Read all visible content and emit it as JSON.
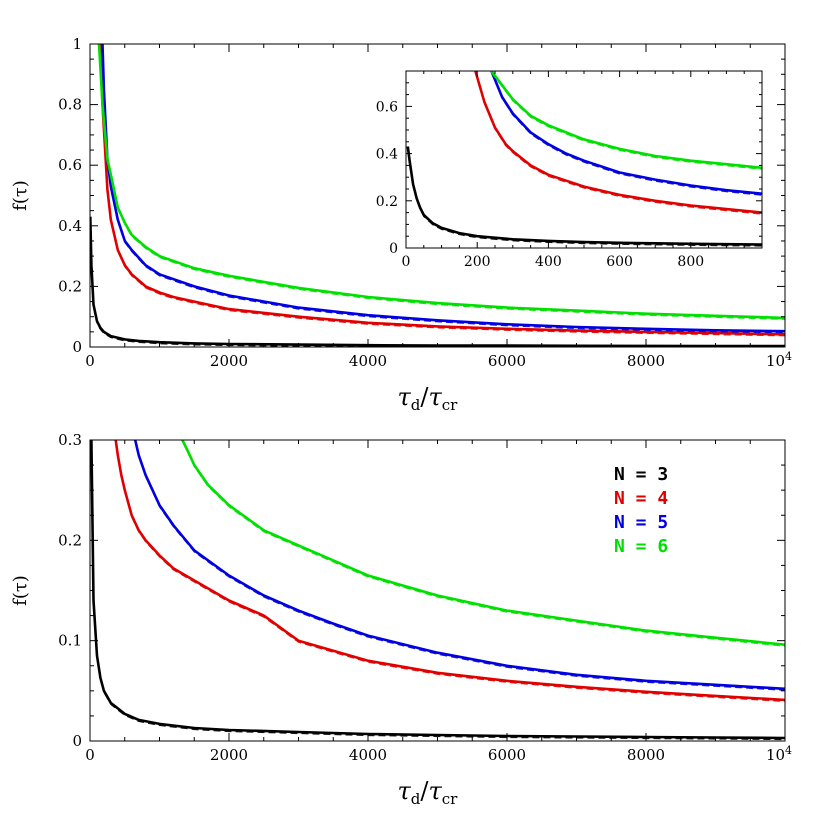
{
  "chart_data": [
    {
      "id": "top",
      "type": "line",
      "xlabel_main": "τ",
      "xlabel_sub_num": "d",
      "xlabel_den_main": "τ",
      "xlabel_den_sub": "cr",
      "ylabel": "f(τ)",
      "xlim": [
        0,
        10000
      ],
      "ylim": [
        0,
        1
      ],
      "xticks": [
        0,
        2000,
        4000,
        6000,
        8000
      ],
      "xtick_labels": [
        "0",
        "2000",
        "4000",
        "6000",
        "8000"
      ],
      "xtick_last": {
        "value": 10000,
        "base": "10",
        "exp": "4"
      },
      "yticks": [
        0,
        0.2,
        0.4,
        0.6,
        0.8,
        1
      ],
      "ytick_labels": [
        "0",
        "0.2",
        "0.4",
        "0.6",
        "0.8",
        "1"
      ],
      "series": [
        {
          "color": "#000000",
          "x": [
            5,
            20,
            50,
            100,
            150,
            200,
            300,
            500,
            700,
            1000,
            1500,
            2000,
            3000,
            4000,
            5000,
            6000,
            7000,
            8000,
            9000,
            10000
          ],
          "y": [
            0.43,
            0.27,
            0.14,
            0.085,
            0.063,
            0.05,
            0.036,
            0.025,
            0.02,
            0.016,
            0.012,
            0.01,
            0.008,
            0.006,
            0.005,
            0.0045,
            0.004,
            0.0035,
            0.0032,
            0.003
          ]
        },
        {
          "color": "#e00000",
          "x": [
            150,
            180,
            200,
            250,
            300,
            400,
            500,
            600,
            700,
            800,
            1000,
            1200,
            1500,
            2000,
            3000,
            4000,
            5000,
            6000,
            7000,
            8000,
            9000,
            10000
          ],
          "y": [
            1.0,
            0.8,
            0.72,
            0.52,
            0.42,
            0.32,
            0.27,
            0.24,
            0.22,
            0.2,
            0.18,
            0.165,
            0.15,
            0.125,
            0.1,
            0.08,
            0.068,
            0.06,
            0.054,
            0.05,
            0.046,
            0.042
          ]
        },
        {
          "color": "#0000e0",
          "x": [
            180,
            200,
            250,
            300,
            400,
            500,
            600,
            800,
            1000,
            1500,
            2000,
            3000,
            4000,
            5000,
            6000,
            7000,
            8000,
            9000,
            10000
          ],
          "y": [
            1.0,
            0.85,
            0.62,
            0.53,
            0.42,
            0.35,
            0.32,
            0.27,
            0.24,
            0.2,
            0.17,
            0.13,
            0.105,
            0.088,
            0.075,
            0.066,
            0.06,
            0.055,
            0.052
          ]
        },
        {
          "color": "#00e000",
          "x": [
            130,
            180,
            250,
            300,
            400,
            500,
            600,
            800,
            1000,
            1500,
            2000,
            3000,
            4000,
            5000,
            6000,
            7000,
            8000,
            9000,
            10000
          ],
          "y": [
            1.0,
            0.8,
            0.62,
            0.57,
            0.46,
            0.41,
            0.37,
            0.33,
            0.3,
            0.26,
            0.235,
            0.195,
            0.165,
            0.145,
            0.13,
            0.12,
            0.11,
            0.103,
            0.096
          ]
        }
      ]
    },
    {
      "id": "inset",
      "type": "line",
      "xlim": [
        0,
        1000
      ],
      "ylim": [
        0,
        0.75
      ],
      "xticks": [
        0,
        200,
        400,
        600,
        800
      ],
      "xtick_labels": [
        "0",
        "200",
        "400",
        "600",
        "800"
      ],
      "yticks": [
        0,
        0.2,
        0.4,
        0.6
      ],
      "ytick_labels": [
        "0",
        "0.2",
        "0.4",
        "0.6"
      ],
      "series": [
        {
          "color": "#000000",
          "x": [
            5,
            10,
            20,
            30,
            40,
            50,
            75,
            100,
            150,
            200,
            300,
            400,
            500,
            600,
            700,
            800,
            900,
            1000
          ],
          "y": [
            0.43,
            0.37,
            0.27,
            0.21,
            0.17,
            0.14,
            0.105,
            0.085,
            0.063,
            0.05,
            0.037,
            0.03,
            0.025,
            0.022,
            0.02,
            0.018,
            0.016,
            0.015
          ]
        },
        {
          "color": "#e00000",
          "x": [
            195,
            220,
            250,
            280,
            300,
            350,
            400,
            450,
            500,
            600,
            700,
            800,
            900,
            1000
          ],
          "y": [
            0.75,
            0.62,
            0.51,
            0.44,
            0.41,
            0.35,
            0.31,
            0.285,
            0.26,
            0.225,
            0.2,
            0.18,
            0.165,
            0.15
          ]
        },
        {
          "color": "#0000e0",
          "x": [
            240,
            270,
            300,
            350,
            400,
            450,
            500,
            600,
            700,
            800,
            900,
            1000
          ],
          "y": [
            0.75,
            0.64,
            0.57,
            0.49,
            0.44,
            0.4,
            0.37,
            0.32,
            0.29,
            0.265,
            0.245,
            0.23
          ]
        },
        {
          "color": "#00e000",
          "x": [
            240,
            270,
            300,
            350,
            400,
            450,
            500,
            600,
            700,
            800,
            900,
            1000
          ],
          "y": [
            0.75,
            0.69,
            0.63,
            0.56,
            0.52,
            0.49,
            0.46,
            0.42,
            0.39,
            0.37,
            0.355,
            0.34
          ]
        }
      ]
    },
    {
      "id": "bottom",
      "type": "line",
      "xlabel_main": "τ",
      "xlabel_sub_num": "d",
      "xlabel_den_main": "τ",
      "xlabel_den_sub": "cr",
      "ylabel": "f(τ)",
      "xlim": [
        0,
        10000
      ],
      "ylim": [
        0,
        0.3
      ],
      "xticks": [
        0,
        2000,
        4000,
        6000,
        8000
      ],
      "xtick_labels": [
        "0",
        "2000",
        "4000",
        "6000",
        "8000"
      ],
      "xtick_last": {
        "value": 10000,
        "base": "10",
        "exp": "4"
      },
      "yticks": [
        0,
        0.1,
        0.2,
        0.3
      ],
      "ytick_labels": [
        "0",
        "0.1",
        "0.2",
        "0.3"
      ],
      "legend": {
        "position": "top-right",
        "entries": [
          {
            "label": "N = 3",
            "color": "#000000"
          },
          {
            "label": "N = 4",
            "color": "#e00000"
          },
          {
            "label": "N = 5",
            "color": "#0000e0"
          },
          {
            "label": "N = 6",
            "color": "#00e000"
          }
        ]
      },
      "series": [
        {
          "color": "#000000",
          "x": [
            20,
            50,
            100,
            150,
            200,
            300,
            500,
            700,
            1000,
            1500,
            2000,
            3000,
            4000,
            5000,
            6000,
            7000,
            8000,
            9000,
            10000
          ],
          "y": [
            0.3,
            0.14,
            0.085,
            0.063,
            0.05,
            0.038,
            0.027,
            0.021,
            0.017,
            0.013,
            0.011,
            0.009,
            0.007,
            0.006,
            0.005,
            0.0045,
            0.004,
            0.0035,
            0.003
          ]
        },
        {
          "color": "#e00000",
          "x": [
            370,
            400,
            450,
            500,
            600,
            700,
            800,
            1000,
            1200,
            1500,
            2000,
            2500,
            3000,
            4000,
            5000,
            6000,
            7000,
            8000,
            9000,
            10000
          ],
          "y": [
            0.3,
            0.285,
            0.265,
            0.25,
            0.225,
            0.21,
            0.2,
            0.185,
            0.172,
            0.16,
            0.14,
            0.125,
            0.1,
            0.08,
            0.068,
            0.06,
            0.054,
            0.049,
            0.045,
            0.041
          ]
        },
        {
          "color": "#0000e0",
          "x": [
            650,
            700,
            800,
            1000,
            1200,
            1500,
            2000,
            2500,
            3000,
            3500,
            4000,
            5000,
            6000,
            7000,
            8000,
            9000,
            10000
          ],
          "y": [
            0.3,
            0.285,
            0.265,
            0.235,
            0.215,
            0.19,
            0.165,
            0.145,
            0.13,
            0.117,
            0.105,
            0.088,
            0.075,
            0.066,
            0.06,
            0.056,
            0.052
          ]
        },
        {
          "color": "#00e000",
          "x": [
            1330,
            1400,
            1500,
            1700,
            2000,
            2500,
            3000,
            3500,
            4000,
            5000,
            6000,
            7000,
            8000,
            9000,
            10000
          ],
          "y": [
            0.3,
            0.29,
            0.275,
            0.255,
            0.235,
            0.21,
            0.195,
            0.18,
            0.165,
            0.145,
            0.13,
            0.12,
            0.11,
            0.103,
            0.096
          ]
        }
      ]
    }
  ]
}
